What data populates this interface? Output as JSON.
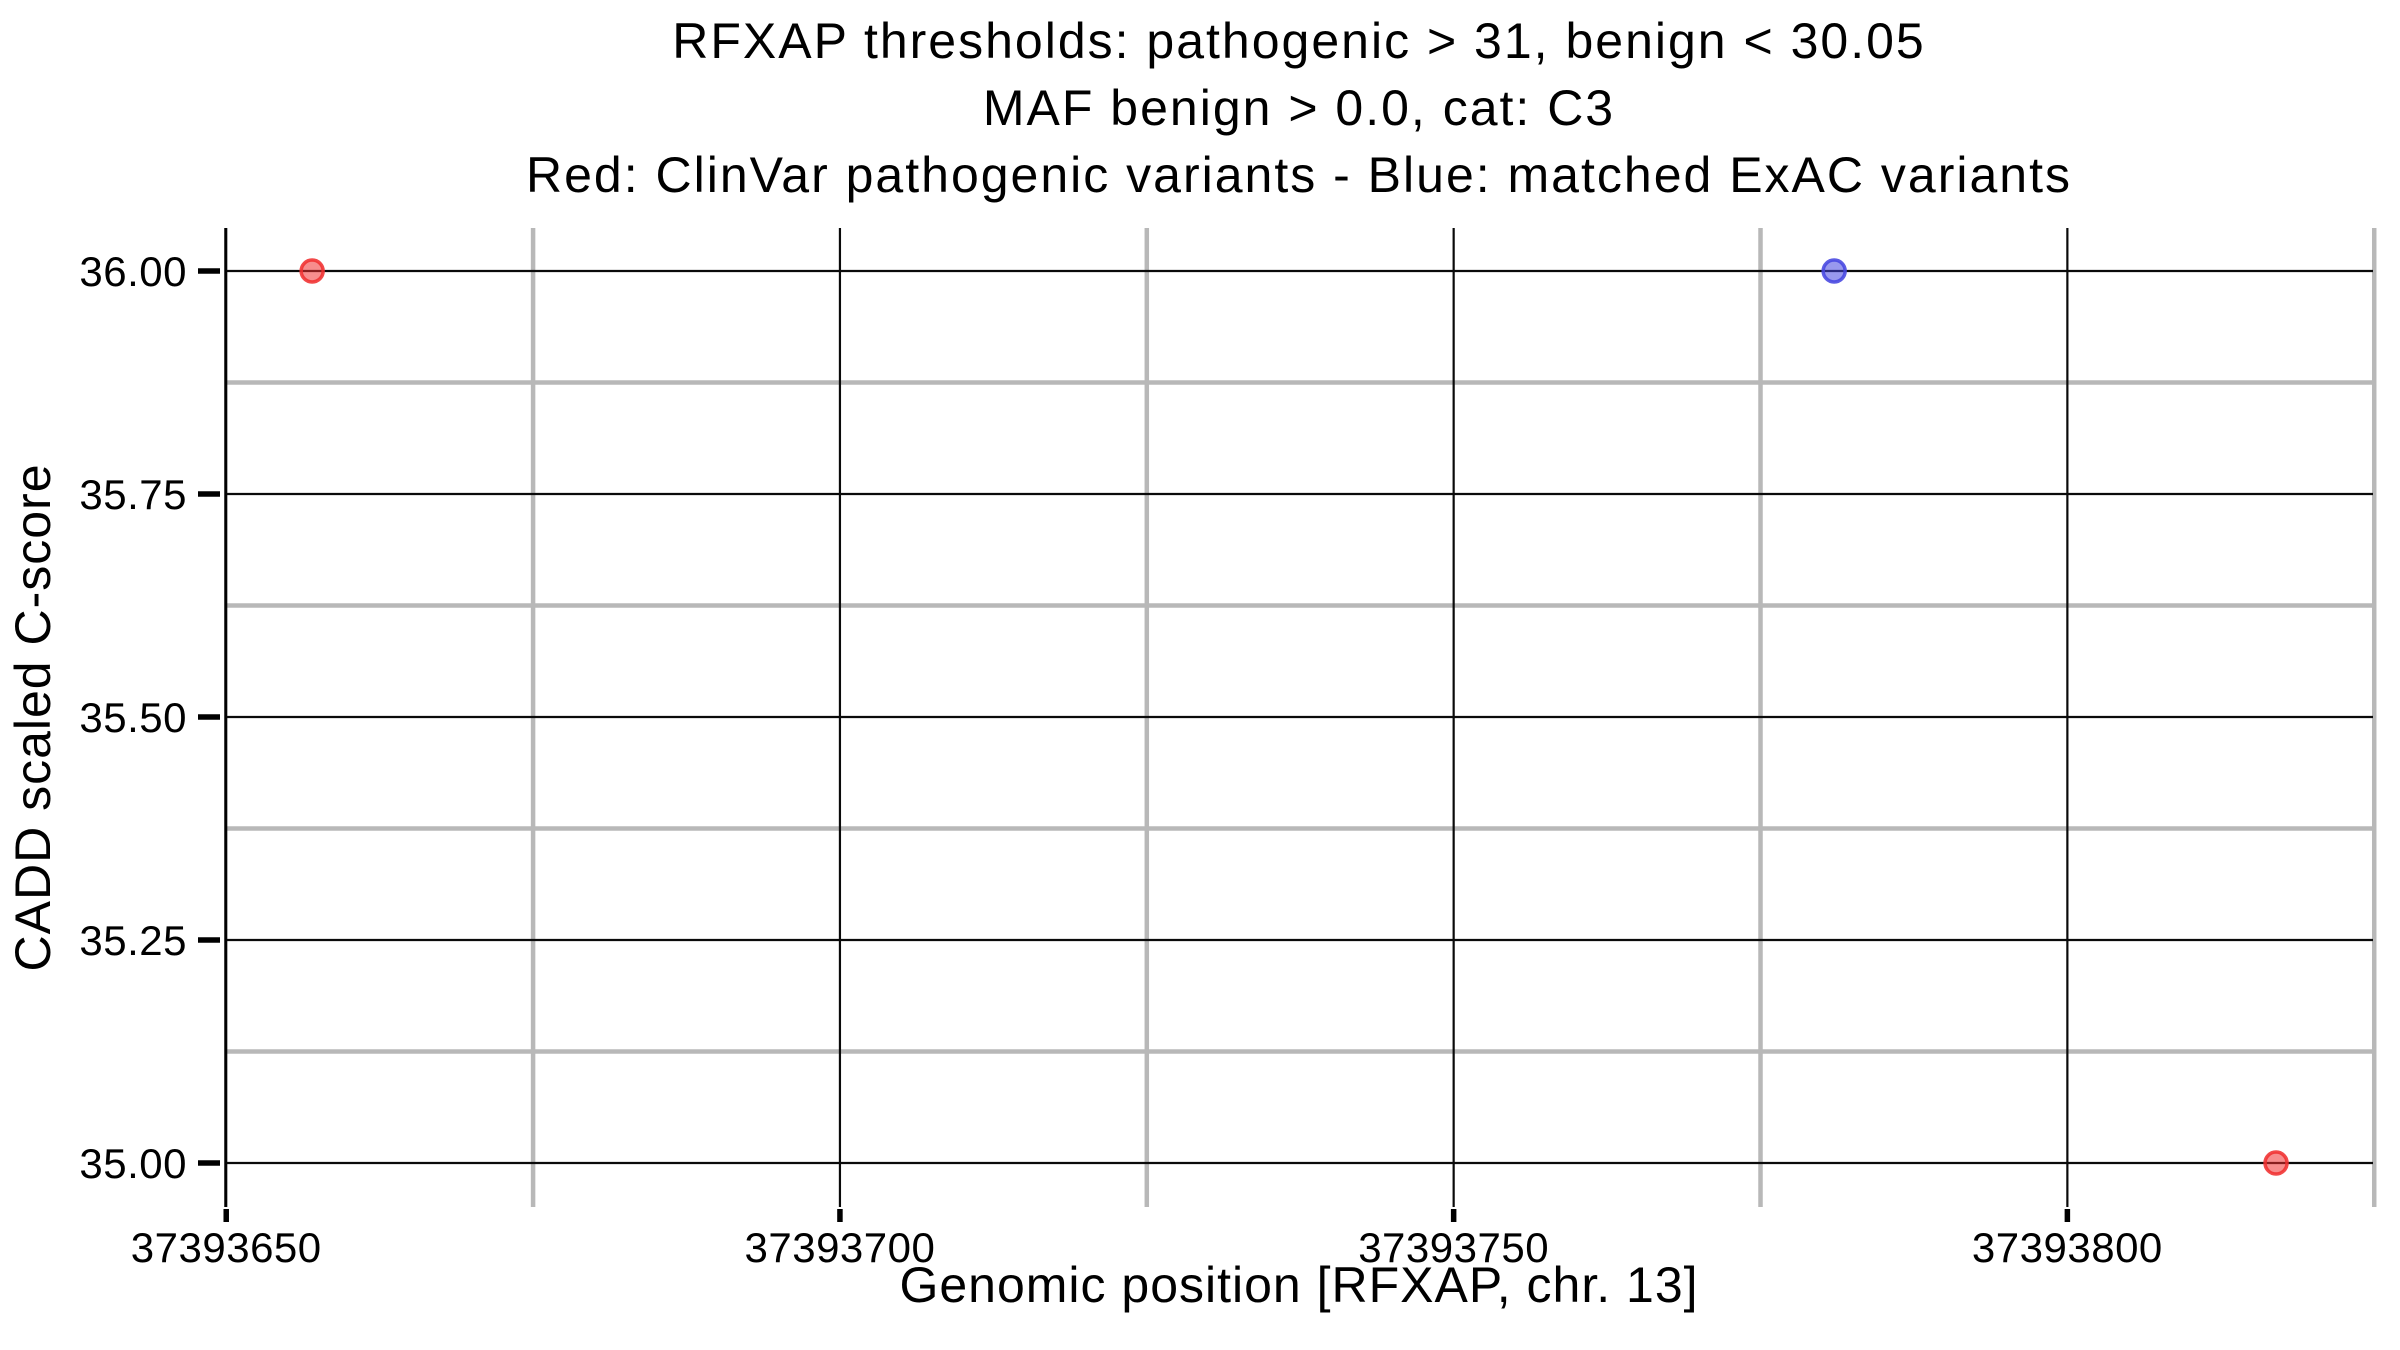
{
  "figure": {
    "background": "#ffffff"
  },
  "title": {
    "lines": [
      "RFXAP thresholds: pathogenic > 31, benign < 30.05",
      "MAF benign > 0.0, cat: C3",
      "Red: ClinVar pathogenic variants - Blue: matched ExAC variants"
    ]
  },
  "axes": {
    "xlabel": "Genomic position [RFXAP, chr. 13]",
    "ylabel": "CADD scaled C-score"
  },
  "chart_data": {
    "type": "scatter",
    "title": "RFXAP thresholds: pathogenic > 31, benign < 30.05\nMAF benign > 0.0, cat: C3\nRed: ClinVar pathogenic variants - Blue: matched ExAC variants",
    "xlabel": "Genomic position [RFXAP, chr. 13]",
    "ylabel": "CADD scaled C-score",
    "xlim": [
      37393649.9,
      37393824.9
    ],
    "ylim": [
      34.9507,
      36.0482
    ],
    "x_major_ticks": [
      37393650,
      37393700,
      37393750,
      37393800
    ],
    "x_tick_labels": [
      "37393650",
      "37393700",
      "37393750",
      "37393800"
    ],
    "x_minor_ticks": [
      37393675,
      37393725,
      37393775,
      37393825
    ],
    "y_major_ticks": [
      35.0,
      35.25,
      35.5,
      35.75,
      36.0
    ],
    "y_tick_labels": [
      "35.00",
      "35.25",
      "35.50",
      "35.75",
      "36.00"
    ],
    "y_minor_ticks": [
      35.125,
      35.375,
      35.625,
      35.875
    ],
    "grid": {
      "major_color": "#0a0a0a",
      "major_width": 2.2,
      "minor_color": "#b8b8b8",
      "minor_width": 4.5,
      "axis_line_color": "#000000",
      "axis_line_width": 2.5,
      "tick_color": "#000000"
    },
    "series": [
      {
        "name": "ClinVar pathogenic variants",
        "color": "#f03030",
        "points": [
          {
            "x": 37393657,
            "y": 36.0
          },
          {
            "x": 37393817,
            "y": 35.0
          }
        ]
      },
      {
        "name": "matched ExAC variants",
        "color": "#4545e0",
        "points": [
          {
            "x": 37393781,
            "y": 36.0
          }
        ]
      }
    ],
    "marker": {
      "radius": 11,
      "fill_opacity": 0.55,
      "stroke_opacity": 0.88,
      "stroke_width": 3.5
    }
  }
}
